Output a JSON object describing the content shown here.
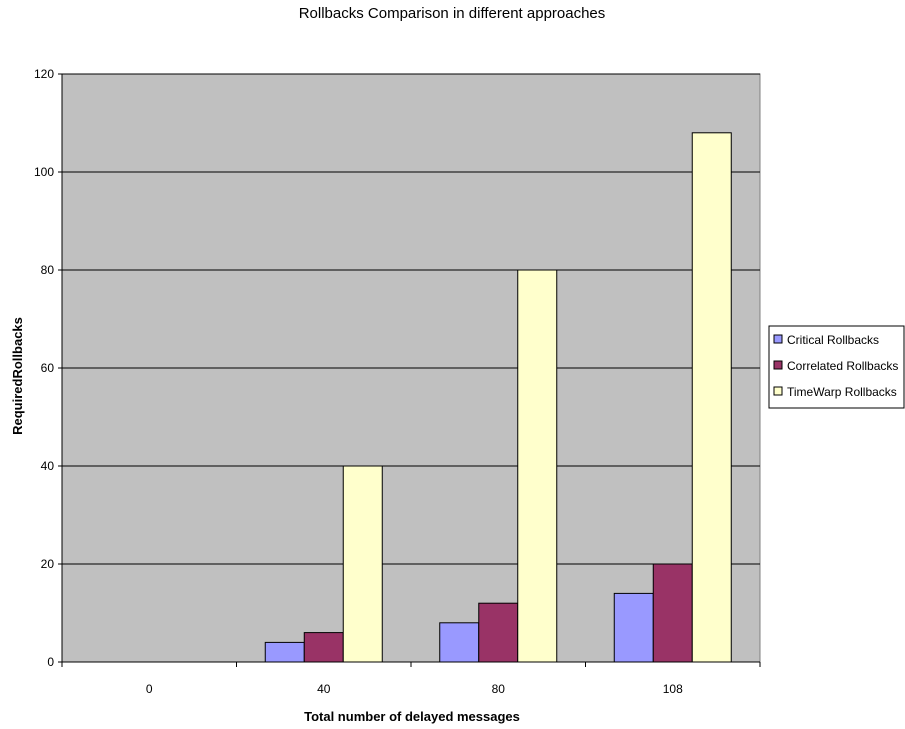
{
  "chart_data": {
    "type": "bar",
    "title": "Rollbacks Comparison in different approaches",
    "xlabel": "Total number of delayed messages",
    "ylabel": "RequiredRollbacks",
    "categories": [
      "0",
      "40",
      "80",
      "108"
    ],
    "series": [
      {
        "name": "Critical Rollbacks",
        "values": [
          0,
          4,
          8,
          14
        ],
        "color": "#9999ff"
      },
      {
        "name": "Correlated Rollbacks",
        "values": [
          0,
          6,
          12,
          20
        ],
        "color": "#993366"
      },
      {
        "name": "TimeWarp Rollbacks",
        "values": [
          0,
          40,
          80,
          108
        ],
        "color": "#ffffcc"
      }
    ],
    "ylim": [
      0,
      120
    ],
    "yticks": [
      0,
      20,
      40,
      60,
      80,
      100,
      120
    ],
    "grid": true,
    "plot_background": "#c0c0c0",
    "legend_position": "right"
  }
}
